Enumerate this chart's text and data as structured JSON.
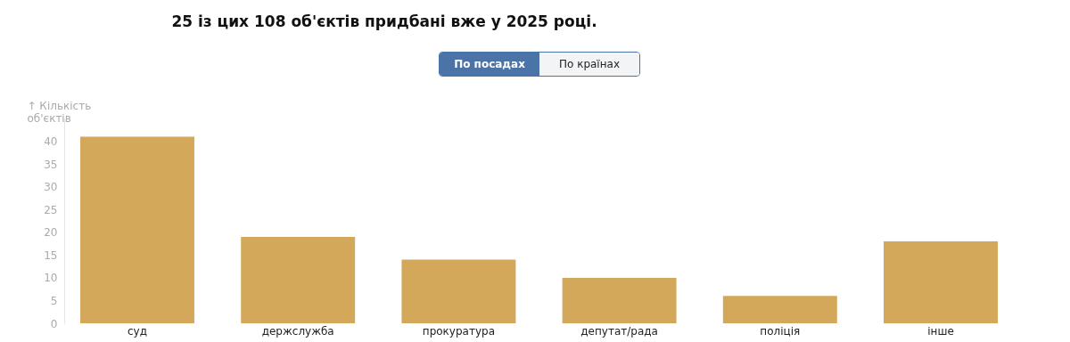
{
  "chart_data": {
    "type": "bar",
    "title": "25 із цих 108 об'єктів придбані вже у 2025 році.",
    "ylabel": "↑ Кількість об'єктів",
    "annotations": [
      "По посадах",
      "По країнах"
    ],
    "categories": [
      "суд",
      "держслужба",
      "прокуратура",
      "депутат/рада",
      "поліція",
      "інше"
    ],
    "values": [
      41,
      19,
      14,
      10,
      6,
      18
    ],
    "color": "#d4a85a",
    "ylim": [
      0,
      45
    ],
    "yticks": [
      0,
      5,
      10,
      15,
      20,
      25,
      30,
      35,
      40
    ],
    "grid": false
  }
}
